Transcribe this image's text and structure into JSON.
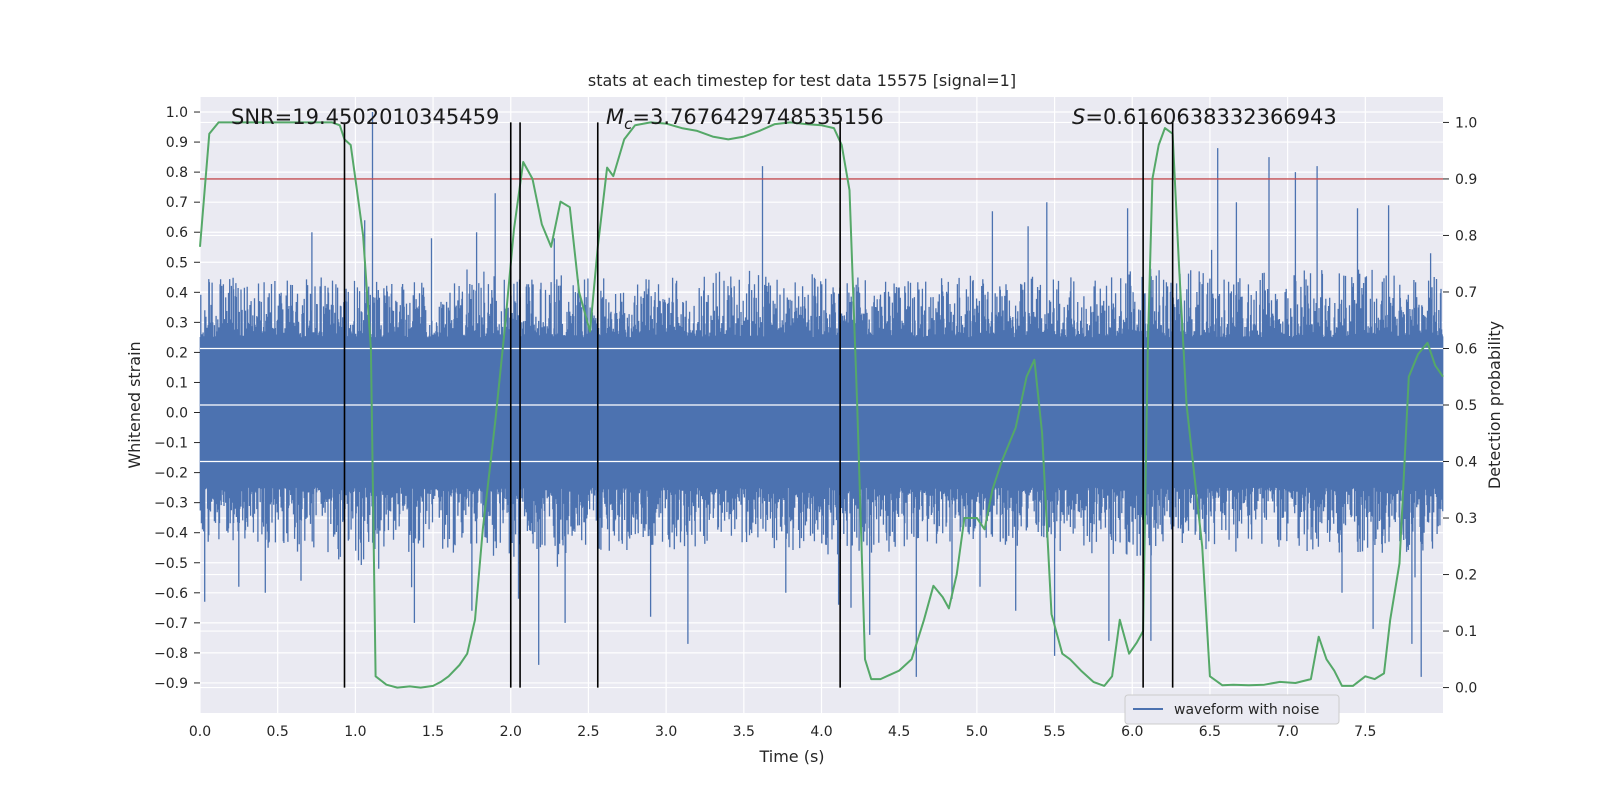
{
  "chart_data": {
    "type": "line",
    "title": "stats at each timestep for test data 15575 [signal=1]",
    "xlabel": "Time (s)",
    "ylabel": "Whitened strain",
    "y2label": "Detection probability",
    "xlim": [
      0.0,
      8.0
    ],
    "ylim": [
      -1.0,
      1.05
    ],
    "y2lim": [
      -0.045,
      1.045
    ],
    "xticks": [
      0.0,
      0.5,
      1.0,
      1.5,
      2.0,
      2.5,
      3.0,
      3.5,
      4.0,
      4.5,
      5.0,
      5.5,
      6.0,
      6.5,
      7.0,
      7.5
    ],
    "yticks": [
      -0.9,
      -0.8,
      -0.7,
      -0.6,
      -0.5,
      -0.4,
      -0.3,
      -0.2,
      -0.1,
      0.0,
      0.1,
      0.2,
      0.3,
      0.4,
      0.5,
      0.6,
      0.7,
      0.8,
      0.9,
      1.0
    ],
    "y2ticks": [
      0.0,
      0.1,
      0.2,
      0.3,
      0.4,
      0.5,
      0.6,
      0.7,
      0.8,
      0.9,
      1.0
    ],
    "grid": true,
    "legend_position": "lower-right",
    "annotations": {
      "snr": "SNR=19.4502010345459",
      "mc_symbol": "M",
      "mc_sub": "c",
      "mc_value": "=3.7676429748535156",
      "s_symbol": "S",
      "s_value": "=0.6160638332366943"
    },
    "threshold": {
      "value": 0.9,
      "axis": "y2",
      "color": "#c44e52"
    },
    "vlines": [
      0.93,
      2.0,
      2.06,
      2.56,
      4.12,
      6.07,
      6.26
    ],
    "series": [
      {
        "name": "waveform with noise",
        "axis": "y",
        "color": "#4c72b0",
        "core_envelope": 0.25,
        "envelope_low": [
          [
            0.0,
            -0.42
          ],
          [
            0.5,
            -0.45
          ],
          [
            1.0,
            -0.5
          ],
          [
            1.5,
            -0.45
          ],
          [
            2.0,
            -0.48
          ],
          [
            2.5,
            -0.45
          ],
          [
            3.0,
            -0.45
          ],
          [
            3.5,
            -0.43
          ],
          [
            4.0,
            -0.47
          ],
          [
            4.5,
            -0.45
          ],
          [
            5.0,
            -0.42
          ],
          [
            5.5,
            -0.45
          ],
          [
            6.0,
            -0.47
          ],
          [
            6.5,
            -0.45
          ],
          [
            7.0,
            -0.46
          ],
          [
            7.5,
            -0.46
          ],
          [
            8.0,
            -0.45
          ]
        ],
        "envelope_high": [
          [
            0.0,
            0.45
          ],
          [
            0.5,
            0.43
          ],
          [
            1.0,
            0.45
          ],
          [
            1.5,
            0.42
          ],
          [
            2.0,
            0.46
          ],
          [
            2.5,
            0.44
          ],
          [
            3.0,
            0.44
          ],
          [
            3.5,
            0.47
          ],
          [
            4.0,
            0.45
          ],
          [
            4.5,
            0.43
          ],
          [
            5.0,
            0.45
          ],
          [
            5.5,
            0.44
          ],
          [
            6.0,
            0.46
          ],
          [
            6.5,
            0.47
          ],
          [
            7.0,
            0.46
          ],
          [
            7.5,
            0.47
          ],
          [
            8.0,
            0.44
          ]
        ],
        "spikes": [
          [
            0.03,
            -0.63
          ],
          [
            0.25,
            -0.58
          ],
          [
            0.42,
            -0.6
          ],
          [
            0.65,
            -0.56
          ],
          [
            0.72,
            0.6
          ],
          [
            1.06,
            0.64
          ],
          [
            1.11,
            1.0
          ],
          [
            1.15,
            -0.52
          ],
          [
            1.38,
            -0.7
          ],
          [
            1.49,
            0.58
          ],
          [
            1.75,
            -0.66
          ],
          [
            1.78,
            0.6
          ],
          [
            1.9,
            0.73
          ],
          [
            2.05,
            -0.62
          ],
          [
            2.18,
            -0.84
          ],
          [
            2.28,
            0.58
          ],
          [
            2.35,
            -0.7
          ],
          [
            2.9,
            -0.68
          ],
          [
            3.14,
            -0.77
          ],
          [
            3.62,
            0.82
          ],
          [
            3.77,
            -0.6
          ],
          [
            4.11,
            -0.64
          ],
          [
            4.19,
            -0.65
          ],
          [
            4.31,
            -0.74
          ],
          [
            4.61,
            -0.88
          ],
          [
            4.84,
            -0.62
          ],
          [
            5.02,
            -0.58
          ],
          [
            5.1,
            0.67
          ],
          [
            5.25,
            -0.66
          ],
          [
            5.33,
            0.62
          ],
          [
            5.45,
            0.7
          ],
          [
            5.5,
            -0.81
          ],
          [
            5.85,
            -0.76
          ],
          [
            5.97,
            0.68
          ],
          [
            6.12,
            -0.76
          ],
          [
            6.55,
            0.88
          ],
          [
            6.67,
            0.7
          ],
          [
            6.88,
            0.85
          ],
          [
            7.05,
            0.8
          ],
          [
            7.19,
            0.82
          ],
          [
            7.35,
            -0.6
          ],
          [
            7.45,
            0.68
          ],
          [
            7.55,
            -0.72
          ],
          [
            7.65,
            0.69
          ],
          [
            7.8,
            -0.77
          ],
          [
            7.86,
            -0.88
          ],
          [
            7.92,
            0.53
          ]
        ]
      },
      {
        "name": "",
        "axis": "y2",
        "color": "#55a868",
        "x": [
          0.0,
          0.06,
          0.12,
          0.2,
          0.3,
          0.45,
          0.6,
          0.75,
          0.85,
          0.9,
          0.93,
          0.97,
          1.0,
          1.05,
          1.1,
          1.13,
          1.2,
          1.27,
          1.35,
          1.42,
          1.5,
          1.55,
          1.6,
          1.67,
          1.72,
          1.77,
          1.82,
          1.9,
          1.96,
          2.02,
          2.08,
          2.14,
          2.2,
          2.26,
          2.32,
          2.38,
          2.44,
          2.51,
          2.56,
          2.62,
          2.66,
          2.73,
          2.8,
          2.9,
          3.0,
          3.1,
          3.2,
          3.3,
          3.4,
          3.5,
          3.6,
          3.7,
          3.8,
          3.9,
          4.0,
          4.08,
          4.13,
          4.18,
          4.23,
          4.28,
          4.32,
          4.38,
          4.5,
          4.58,
          4.66,
          4.72,
          4.78,
          4.82,
          4.87,
          4.92,
          5.0,
          5.05,
          5.1,
          5.16,
          5.25,
          5.32,
          5.37,
          5.42,
          5.48,
          5.55,
          5.6,
          5.67,
          5.75,
          5.82,
          5.87,
          5.92,
          5.98,
          6.03,
          6.07,
          6.1,
          6.13,
          6.17,
          6.21,
          6.26,
          6.3,
          6.35,
          6.45,
          6.5,
          6.58,
          6.65,
          6.75,
          6.85,
          6.95,
          7.05,
          7.15,
          7.2,
          7.25,
          7.3,
          7.35,
          7.42,
          7.5,
          7.56,
          7.62,
          7.66,
          7.72,
          7.78,
          7.84,
          7.9,
          7.95,
          8.0
        ],
        "y": [
          0.78,
          0.98,
          1.0,
          1.0,
          1.0,
          1.0,
          1.0,
          1.0,
          1.0,
          0.995,
          0.97,
          0.96,
          0.9,
          0.8,
          0.6,
          0.02,
          0.005,
          0.0,
          0.002,
          0.0,
          0.003,
          0.01,
          0.02,
          0.04,
          0.06,
          0.12,
          0.28,
          0.47,
          0.63,
          0.81,
          0.93,
          0.9,
          0.82,
          0.78,
          0.86,
          0.85,
          0.7,
          0.63,
          0.78,
          0.92,
          0.905,
          0.97,
          0.995,
          1.0,
          0.998,
          0.99,
          0.985,
          0.975,
          0.97,
          0.975,
          0.985,
          0.997,
          1.0,
          0.997,
          0.995,
          0.99,
          0.96,
          0.88,
          0.5,
          0.05,
          0.015,
          0.015,
          0.03,
          0.05,
          0.12,
          0.18,
          0.16,
          0.14,
          0.2,
          0.3,
          0.3,
          0.28,
          0.35,
          0.4,
          0.46,
          0.55,
          0.58,
          0.45,
          0.13,
          0.06,
          0.05,
          0.03,
          0.01,
          0.003,
          0.02,
          0.12,
          0.06,
          0.08,
          0.1,
          0.6,
          0.9,
          0.96,
          0.99,
          0.98,
          0.75,
          0.5,
          0.25,
          0.02,
          0.004,
          0.005,
          0.004,
          0.005,
          0.01,
          0.008,
          0.015,
          0.09,
          0.05,
          0.03,
          0.003,
          0.003,
          0.02,
          0.015,
          0.025,
          0.12,
          0.22,
          0.55,
          0.59,
          0.61,
          0.57,
          0.55
        ]
      }
    ]
  }
}
